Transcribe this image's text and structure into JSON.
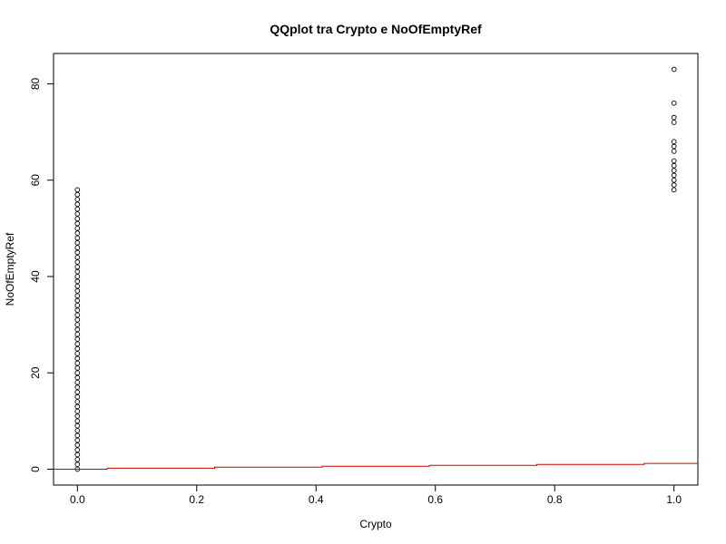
{
  "chart_data": {
    "type": "scatter",
    "title": "QQplot tra Crypto e NoOfEmptyRef",
    "xlabel": "Crypto",
    "ylabel": "NoOfEmptyRef",
    "xlim": [
      -0.04,
      1.04
    ],
    "ylim": [
      -3.3,
      86.3
    ],
    "x_ticks": [
      0,
      0.2,
      0.4,
      0.6,
      0.8,
      1
    ],
    "x_tick_labels": [
      "0.0",
      "0.2",
      "0.4",
      "0.6",
      "0.8",
      "1.0"
    ],
    "y_ticks": [
      0,
      20,
      40,
      60,
      80
    ],
    "y_tick_labels": [
      "0",
      "20",
      "40",
      "60",
      "80"
    ],
    "grid": false,
    "series": [
      {
        "marker": "open-circle",
        "color": "#000000",
        "points": [
          {
            "x": 0,
            "y_from": 0,
            "y_to": 58,
            "y_step": 1
          },
          {
            "x": 1,
            "y": [
              58,
              59,
              60,
              61,
              62,
              63,
              64,
              66,
              67,
              68,
              72,
              73,
              76,
              83
            ]
          }
        ]
      },
      {
        "line": "step",
        "color": "#cc0000",
        "x": [
          -0.04,
          0.05,
          0.05,
          0.23,
          0.23,
          0.41,
          0.41,
          0.59,
          0.59,
          0.77,
          0.77,
          0.95,
          0.95,
          1.04
        ],
        "y": [
          0,
          0,
          0.2,
          0.2,
          0.4,
          0.4,
          0.6,
          0.6,
          0.8,
          0.8,
          1.0,
          1.0,
          1.2,
          1.2
        ]
      }
    ]
  }
}
